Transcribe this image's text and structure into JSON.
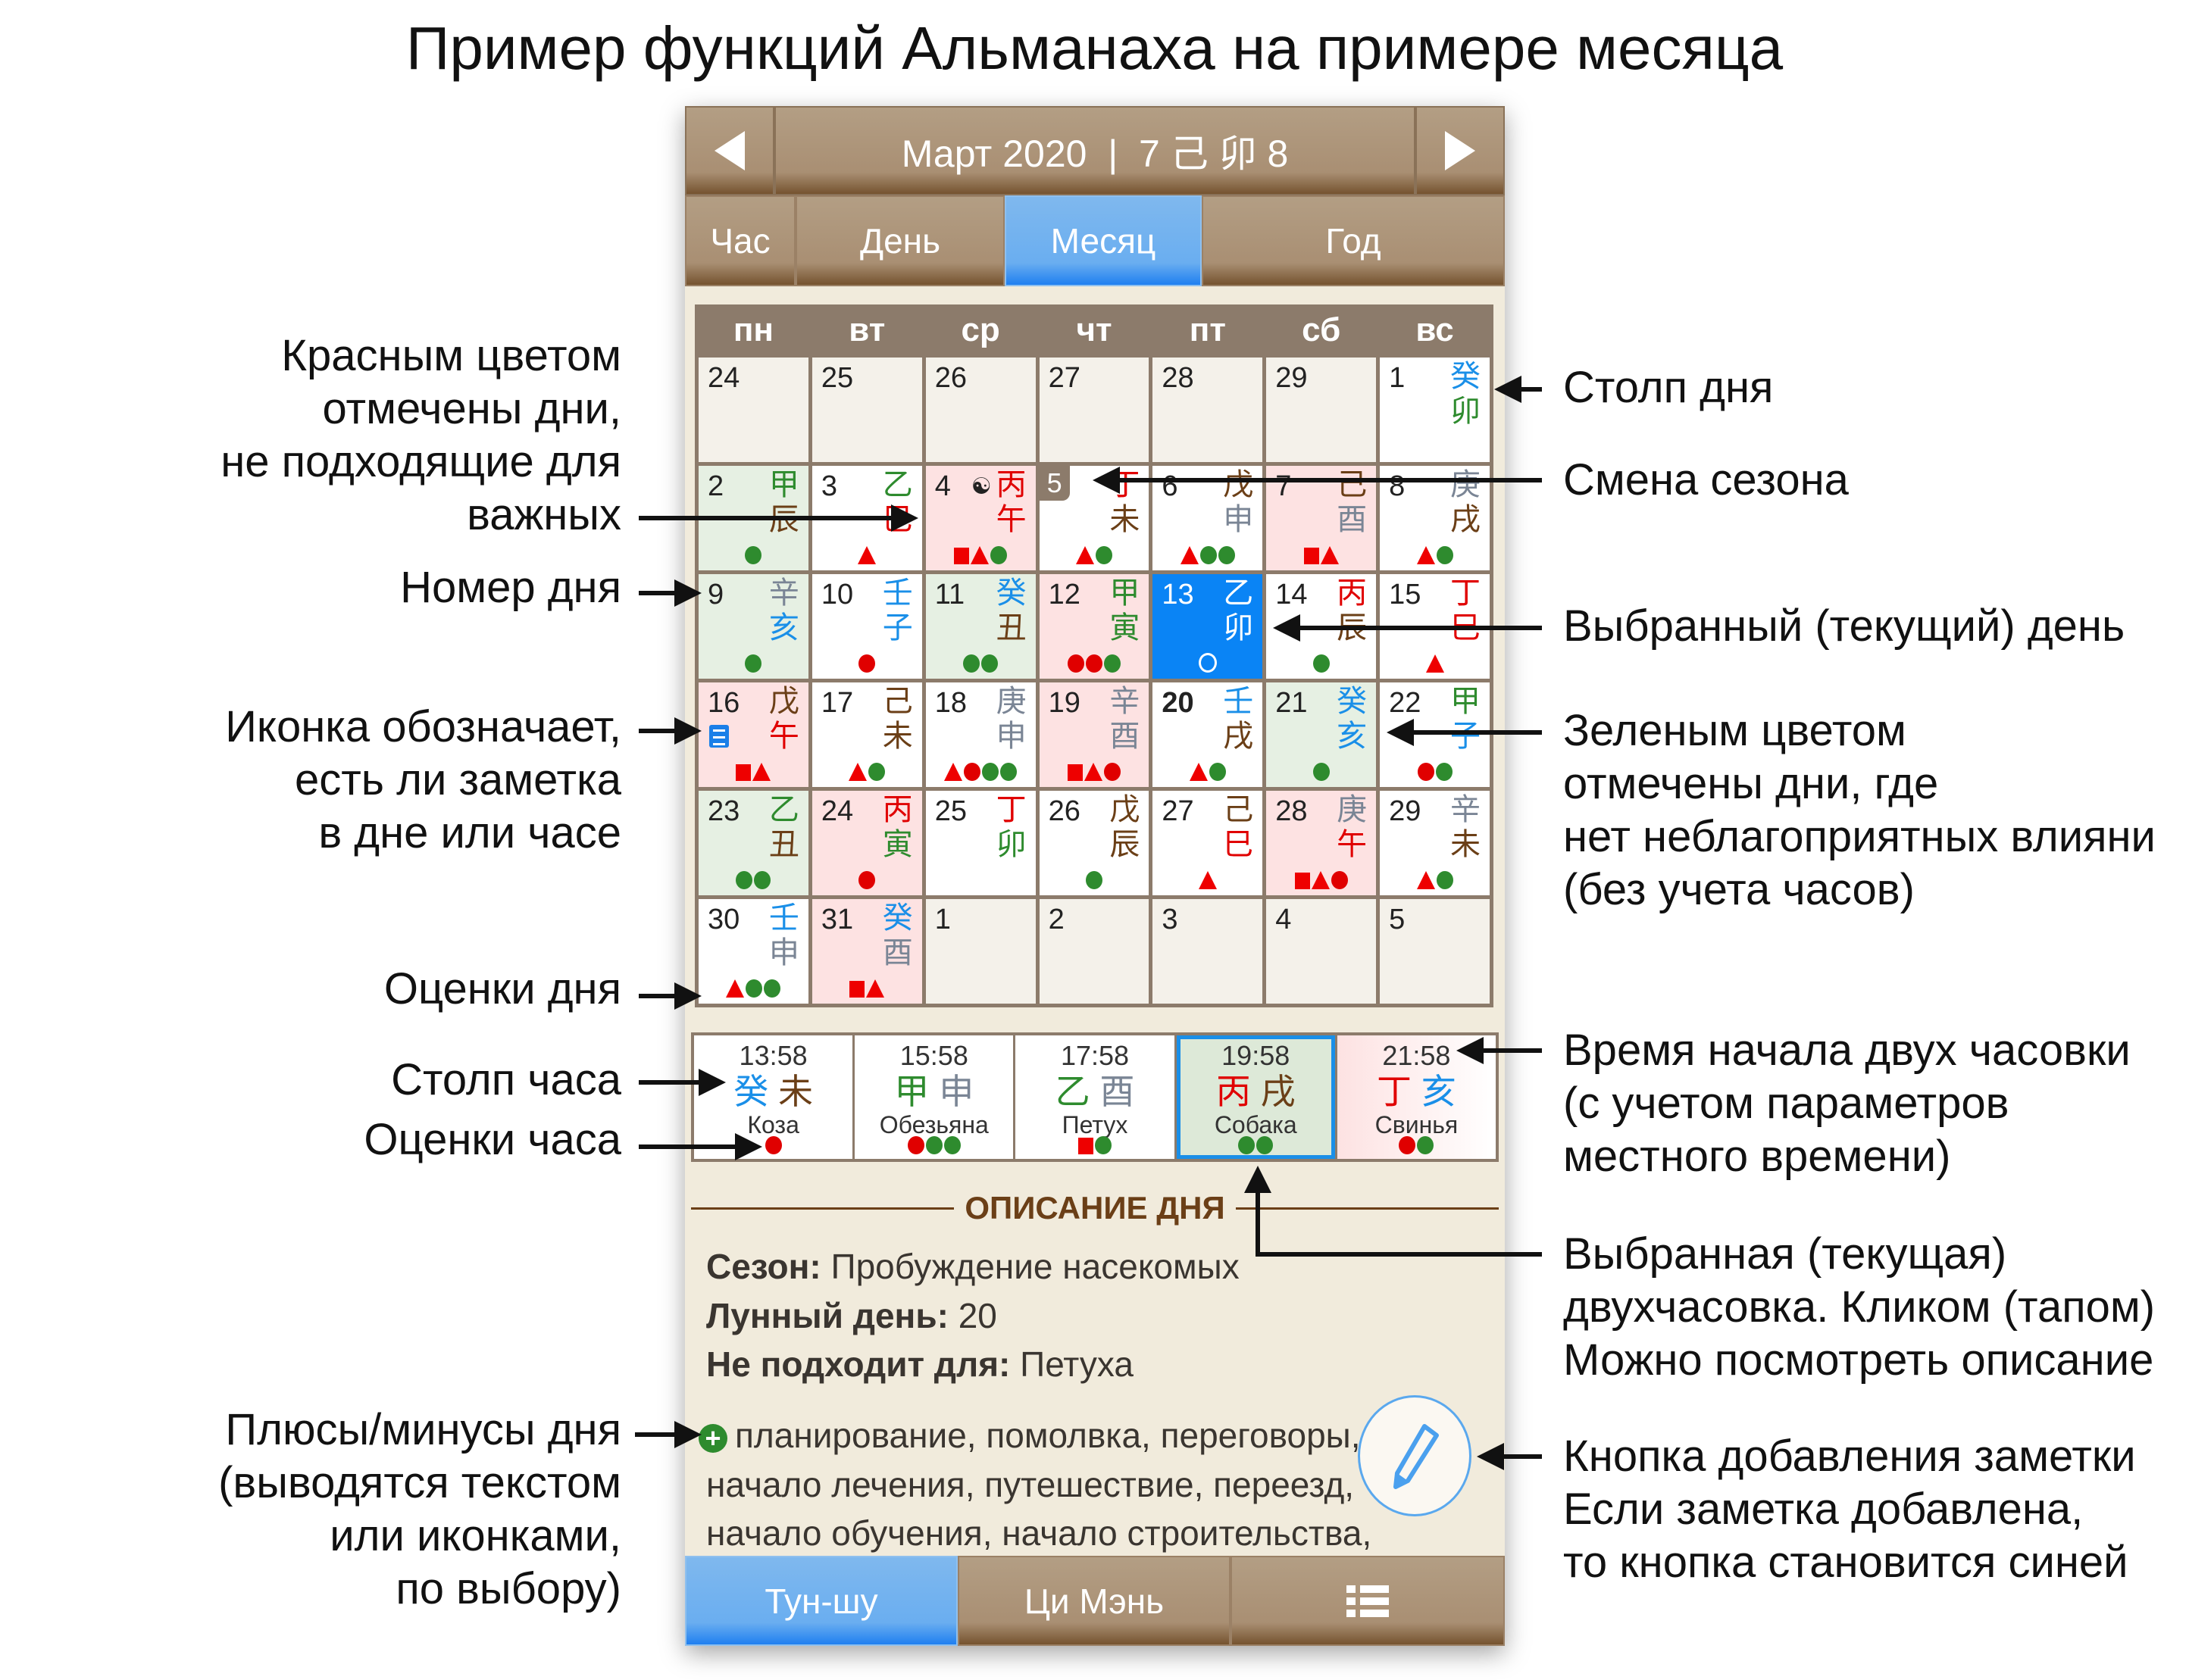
{
  "title": "Пример функций Альманаха на примере месяца",
  "header": {
    "title": "Март 2020  |  7 己 卯 8",
    "prev_icon": "triangle-left",
    "next_icon": "triangle-right"
  },
  "tabs": [
    {
      "label": "Час"
    },
    {
      "label": "День"
    },
    {
      "label": "Месяц",
      "active": true
    },
    {
      "label": "Год"
    }
  ],
  "weekdays": [
    "пн",
    "вт",
    "ср",
    "чт",
    "пт",
    "сб",
    "вс"
  ],
  "element_colors": {
    "wood": "#2e8b2e",
    "fire": "#e00000",
    "earth": "#6b3f17",
    "metal": "#7a8595",
    "water": "#1a8fe8"
  },
  "mark_colors": {
    "green": "#2e8b2e",
    "red": "#e00000"
  },
  "calendar": [
    {
      "d": "24",
      "t": "other"
    },
    {
      "d": "25",
      "t": "other"
    },
    {
      "d": "26",
      "t": "other"
    },
    {
      "d": "27",
      "t": "other"
    },
    {
      "d": "28",
      "t": "other"
    },
    {
      "d": "29",
      "t": "other"
    },
    {
      "d": "1",
      "t": "white",
      "s": "癸",
      "b": "卯",
      "m": ""
    },
    {
      "d": "2",
      "t": "green",
      "s": "甲",
      "b": "辰",
      "m": "c"
    },
    {
      "d": "3",
      "t": "white",
      "s": "乙",
      "b": "巳",
      "m": "t"
    },
    {
      "d": "4",
      "t": "red",
      "s": "丙",
      "b": "午",
      "m": "stc",
      "icon": "yin-yang-skull"
    },
    {
      "d": "5",
      "t": "white",
      "s": "丁",
      "b": "未",
      "m": "tc",
      "season": true
    },
    {
      "d": "6",
      "t": "white",
      "s": "戊",
      "b": "申",
      "m": "tcc"
    },
    {
      "d": "7",
      "t": "red",
      "s": "己",
      "b": "酉",
      "m": "st"
    },
    {
      "d": "8",
      "t": "white",
      "s": "庚",
      "b": "戌",
      "m": "tc"
    },
    {
      "d": "9",
      "t": "green",
      "s": "辛",
      "b": "亥",
      "m": "c"
    },
    {
      "d": "10",
      "t": "white",
      "s": "壬",
      "b": "子",
      "m": "r"
    },
    {
      "d": "11",
      "t": "green",
      "s": "癸",
      "b": "丑",
      "m": "cc"
    },
    {
      "d": "12",
      "t": "red",
      "s": "甲",
      "b": "寅",
      "m": "rrc"
    },
    {
      "d": "13",
      "t": "sel",
      "s": "乙",
      "b": "卯",
      "m": "o"
    },
    {
      "d": "14",
      "t": "white",
      "s": "丙",
      "b": "辰",
      "m": "c"
    },
    {
      "d": "15",
      "t": "white",
      "s": "丁",
      "b": "巳",
      "m": "t"
    },
    {
      "d": "16",
      "t": "red",
      "s": "戊",
      "b": "午",
      "m": "st",
      "note": true
    },
    {
      "d": "17",
      "t": "white",
      "s": "己",
      "b": "未",
      "m": "tc"
    },
    {
      "d": "18",
      "t": "white",
      "s": "庚",
      "b": "申",
      "m": "trcc"
    },
    {
      "d": "19",
      "t": "red",
      "s": "辛",
      "b": "酉",
      "m": "str"
    },
    {
      "d": "20",
      "t": "white",
      "s": "壬",
      "b": "戌",
      "m": "tc",
      "bold": true
    },
    {
      "d": "21",
      "t": "green",
      "s": "癸",
      "b": "亥",
      "m": "c"
    },
    {
      "d": "22",
      "t": "white",
      "s": "甲",
      "b": "子",
      "m": "rc"
    },
    {
      "d": "23",
      "t": "green",
      "s": "乙",
      "b": "丑",
      "m": "cc"
    },
    {
      "d": "24",
      "t": "red",
      "s": "丙",
      "b": "寅",
      "m": "r"
    },
    {
      "d": "25",
      "t": "white",
      "s": "丁",
      "b": "卯",
      "m": ""
    },
    {
      "d": "26",
      "t": "white",
      "s": "戊",
      "b": "辰",
      "m": "c"
    },
    {
      "d": "27",
      "t": "white",
      "s": "己",
      "b": "巳",
      "m": "t"
    },
    {
      "d": "28",
      "t": "red",
      "s": "庚",
      "b": "午",
      "m": "str"
    },
    {
      "d": "29",
      "t": "white",
      "s": "辛",
      "b": "未",
      "m": "tc"
    },
    {
      "d": "30",
      "t": "white",
      "s": "壬",
      "b": "申",
      "m": "tcc"
    },
    {
      "d": "31",
      "t": "red",
      "s": "癸",
      "b": "酉",
      "m": "st"
    },
    {
      "d": "1",
      "t": "other"
    },
    {
      "d": "2",
      "t": "other"
    },
    {
      "d": "3",
      "t": "other"
    },
    {
      "d": "4",
      "t": "other"
    },
    {
      "d": "5",
      "t": "other"
    }
  ],
  "hours": [
    {
      "time": "13:58",
      "s": "癸",
      "b": "未",
      "animal": "Коза",
      "m": "r"
    },
    {
      "time": "15:58",
      "s": "甲",
      "b": "申",
      "animal": "Обезьяна",
      "m": "rcc"
    },
    {
      "time": "17:58",
      "s": "乙",
      "b": "酉",
      "animal": "Петух",
      "m": "sc"
    },
    {
      "time": "19:58",
      "s": "丙",
      "b": "戌",
      "animal": "Собака",
      "m": "cc",
      "selected": true
    },
    {
      "time": "21:58",
      "s": "丁",
      "b": "亥",
      "animal": "Свинья",
      "m": "rc"
    }
  ],
  "description": {
    "section_title": "ОПИСАНИЕ ДНЯ",
    "season_label": "Сезон:",
    "season_value": "Пробуждение насекомых",
    "lunar_label": "Лунный день:",
    "lunar_value": "20",
    "unsuitable_label": "Не подходит для:",
    "unsuitable_value": "Петуха",
    "plus_lines": [
      "планирование, помолвка, переговоры,",
      "начало лечения, путешествие, переезд,",
      "начало обучения, начало строительства,"
    ]
  },
  "bottom_bar": [
    {
      "label": "Тун-шу",
      "active": true
    },
    {
      "label": "Ци Мэнь"
    },
    {
      "icon": "menu-list-icon"
    }
  ],
  "annotations_left": [
    [
      "Красным цветом",
      "отмечены дни,",
      "не подходящие для",
      "важных"
    ],
    [
      "Номер дня"
    ],
    [
      "Иконка обозначает,",
      "есть ли заметка",
      "в дне или часе"
    ],
    [
      "Оценки дня"
    ],
    [
      "Столп часа"
    ],
    [
      "Оценки часа"
    ],
    [
      "Плюсы/минусы дня",
      "(выводятся текстом",
      "или иконками,",
      "по выбору)"
    ]
  ],
  "annotations_right": [
    [
      "Столп дня"
    ],
    [
      "Смена сезона"
    ],
    [
      "Выбранный (текущий) день"
    ],
    [
      "Зеленым цветом",
      "отмечены дни, где",
      "нет неблагоприятных влияни",
      "(без учета часов)"
    ],
    [
      "Время начала двух часовки",
      "(с учетом параметров",
      "местного времени)"
    ],
    [
      "Выбранная (текущая)",
      "двухчасовка. Кликом (тапом)",
      "Можно посмотреть описание"
    ],
    [
      "Кнопка добавления заметки",
      "Если заметка добавлена,",
      "то кнопка становится синей"
    ]
  ]
}
